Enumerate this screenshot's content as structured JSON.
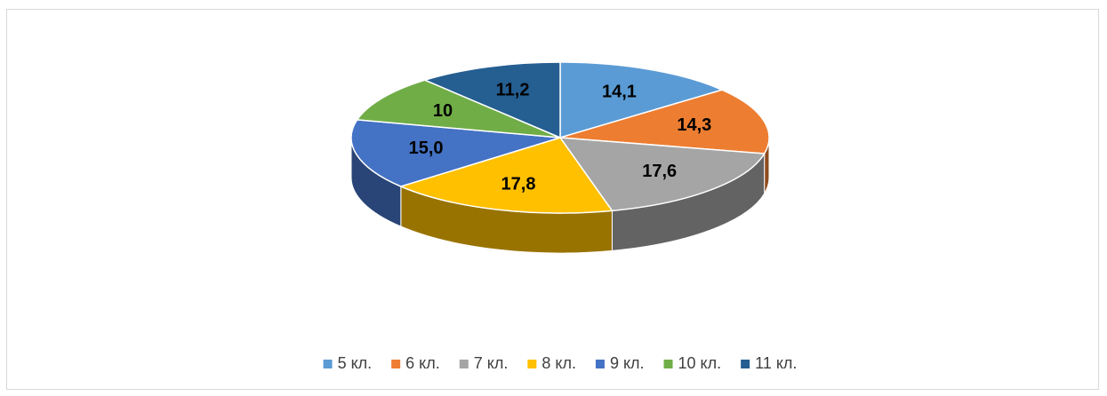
{
  "chart_data": {
    "type": "pie",
    "style": "3d",
    "categories": [
      "5 кл.",
      "6 кл.",
      "7 кл.",
      "8 кл.",
      "9 кл.",
      "10 кл.",
      "11 кл."
    ],
    "values": [
      14.1,
      14.3,
      17.6,
      17.8,
      15.0,
      10,
      11.2
    ],
    "value_labels": [
      "14,1",
      "14,3",
      "17,6",
      "17,8",
      "15,0",
      "10",
      "11,2"
    ],
    "colors": [
      "#5b9bd5",
      "#ed7d31",
      "#a5a5a5",
      "#ffc000",
      "#4472c4",
      "#70ad47",
      "#255e91"
    ],
    "legend": "bottom"
  }
}
